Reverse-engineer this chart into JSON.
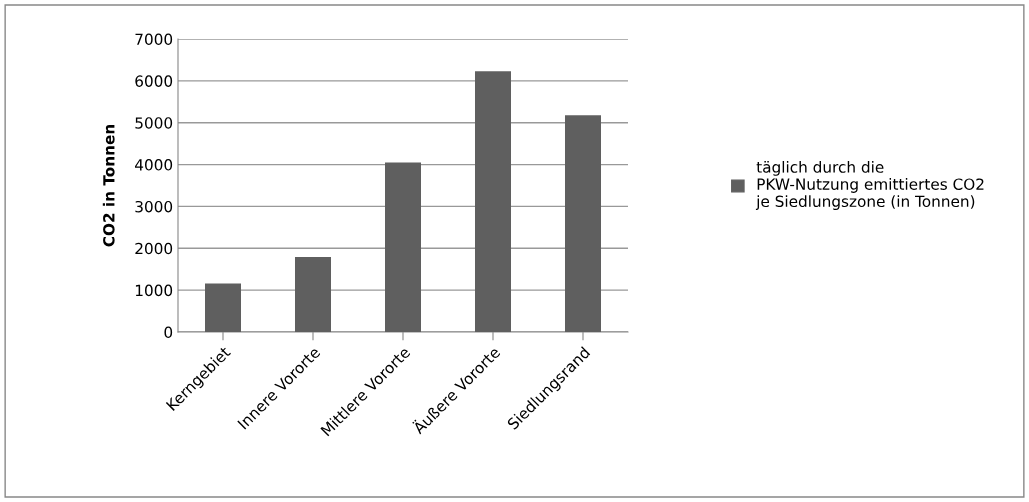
{
  "chart_data": {
    "type": "bar",
    "ylabel": "CO2 in Tonnen",
    "categories": [
      "Kerngebiet",
      "Innere Vororte",
      "Mittlere Vororte",
      "Äußere Vororte",
      "Siedlungsrand"
    ],
    "series": [
      {
        "name": "täglich durch die PKW-Nutzung emittiertes CO2 je Siedlungszone (in Tonnen)",
        "color": "#5f5f5f",
        "values": [
          1160,
          1790,
          4050,
          6230,
          5180
        ]
      }
    ],
    "ylim": [
      0,
      7000
    ],
    "yticks": [
      0,
      1000,
      2000,
      3000,
      4000,
      5000,
      6000,
      7000
    ],
    "grid": "y",
    "legend": "right"
  }
}
